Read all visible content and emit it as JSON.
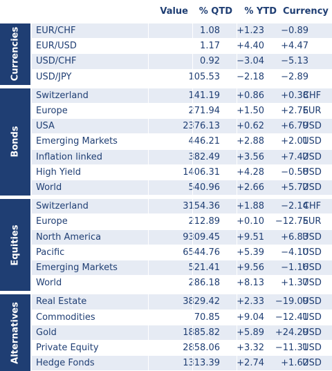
{
  "header": {
    "value": "Value",
    "qtd": "% QTD",
    "ytd": "% YTD",
    "currency": "Currency"
  },
  "groups": [
    {
      "name": "Currencies",
      "rows": [
        {
          "name": "EUR/CHF",
          "value": "1.08",
          "qtd": "+1.23",
          "ytd": "−0.89",
          "currency": ""
        },
        {
          "name": "EUR/USD",
          "value": "1.17",
          "qtd": "+4.40",
          "ytd": "+4.47",
          "currency": ""
        },
        {
          "name": "USD/CHF",
          "value": "0.92",
          "qtd": "−3.04",
          "ytd": "−5.13",
          "currency": ""
        },
        {
          "name": "USD/JPY",
          "value": "105.53",
          "qtd": "−2.18",
          "ytd": "−2.89",
          "currency": ""
        }
      ]
    },
    {
      "name": "Bonds",
      "rows": [
        {
          "name": "Switzerland",
          "value": "141.19",
          "qtd": "+0.86",
          "ytd": "+0.38",
          "currency": "CHF"
        },
        {
          "name": "Europe",
          "value": "271.94",
          "qtd": "+1.50",
          "ytd": "+2.76",
          "currency": "EUR"
        },
        {
          "name": "USA",
          "value": "2376.13",
          "qtd": "+0.62",
          "ytd": "+6.79",
          "currency": "USD"
        },
        {
          "name": "Emerging Markets",
          "value": "446.21",
          "qtd": "+2.88",
          "ytd": "+2.01",
          "currency": "USD"
        },
        {
          "name": "Inflation linked",
          "value": "382.49",
          "qtd": "+3.56",
          "ytd": "+7.42",
          "currency": "USD"
        },
        {
          "name": "High Yield",
          "value": "1406.31",
          "qtd": "+4.28",
          "ytd": "−0.58",
          "currency": "USD"
        },
        {
          "name": "World",
          "value": "540.96",
          "qtd": "+2.66",
          "ytd": "+5.72",
          "currency": "USD"
        }
      ]
    },
    {
      "name": "Equities",
      "rows": [
        {
          "name": "Switzerland",
          "value": "3154.36",
          "qtd": "+1.88",
          "ytd": "−2.14",
          "currency": "CHF"
        },
        {
          "name": "Europe",
          "value": "212.89",
          "qtd": "+0.10",
          "ytd": "−12.75",
          "currency": "EUR"
        },
        {
          "name": "North America",
          "value": "9309.45",
          "qtd": "+9.51",
          "ytd": "+6.83",
          "currency": "USD"
        },
        {
          "name": "Pacific",
          "value": "6544.76",
          "qtd": "+5.39",
          "ytd": "−4.10",
          "currency": "USD"
        },
        {
          "name": "Emerging Markets",
          "value": "521.41",
          "qtd": "+9.56",
          "ytd": "−1.16",
          "currency": "USD"
        },
        {
          "name": "World",
          "value": "286.18",
          "qtd": "+8.13",
          "ytd": "+1.37",
          "currency": "USD"
        }
      ]
    },
    {
      "name": "Alternatives",
      "rows": [
        {
          "name": "Real Estate",
          "value": "3829.42",
          "qtd": "+2.33",
          "ytd": "−19.09",
          "currency": "USD"
        },
        {
          "name": "Commodities",
          "value": "70.85",
          "qtd": "+9.04",
          "ytd": "−12.41",
          "currency": "USD"
        },
        {
          "name": "Gold",
          "value": "1885.82",
          "qtd": "+5.89",
          "ytd": "+24.29",
          "currency": "USD"
        },
        {
          "name": "Private Equity",
          "value": "2858.06",
          "qtd": "+3.32",
          "ytd": "−11.31",
          "currency": "USD"
        },
        {
          "name": "Hedge Fonds",
          "value": "1313.39",
          "qtd": "+2.74",
          "ytd": "+1.62",
          "currency": "USD"
        }
      ]
    }
  ]
}
